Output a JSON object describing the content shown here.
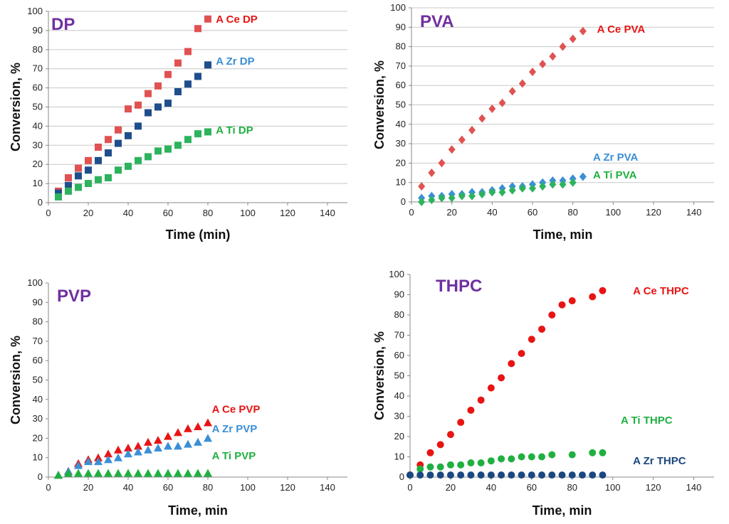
{
  "colors": {
    "ce_light": "#e05252",
    "zr_dark": "#1f4e8c",
    "ti_light": "#2db35d",
    "zr_light": "#3b8fd6",
    "ti_bright": "#20b040",
    "ce_bright": "#e81414",
    "zr_navy": "#1a4780",
    "title_purple": "#7030a0",
    "grid": "#c8c8c8"
  },
  "chart_data": [
    {
      "id": "dp",
      "type": "scatter",
      "title": "DP",
      "xlabel": "Time (min)",
      "ylabel": "Conversion,  %",
      "xlim": [
        0,
        150
      ],
      "ylim": [
        0,
        100
      ],
      "xticks": [
        0,
        20,
        40,
        60,
        80,
        100,
        120,
        140
      ],
      "yticks": [
        0,
        10,
        20,
        30,
        40,
        50,
        60,
        70,
        80,
        90,
        100
      ],
      "grid": true,
      "series": [
        {
          "name": "A Ce DP",
          "marker": "square",
          "color_key": "ce_light",
          "label_color_key": "ce_bright",
          "x": [
            5,
            10,
            15,
            20,
            25,
            30,
            35,
            40,
            45,
            50,
            55,
            60,
            65,
            70,
            75,
            80
          ],
          "y": [
            6,
            13,
            18,
            22,
            29,
            33,
            38,
            49,
            51,
            57,
            61,
            67,
            73,
            79,
            91,
            96
          ],
          "label_pos": [
            84,
            96
          ]
        },
        {
          "name": "A Zr DP",
          "marker": "square",
          "color_key": "zr_dark",
          "label_color_key": "zr_light",
          "x": [
            5,
            10,
            15,
            20,
            25,
            30,
            35,
            40,
            45,
            50,
            55,
            60,
            65,
            70,
            75,
            80
          ],
          "y": [
            5,
            9,
            14,
            17,
            22,
            26,
            31,
            35,
            40,
            47,
            50,
            52,
            58,
            62,
            66,
            72
          ],
          "label_pos": [
            84,
            74
          ]
        },
        {
          "name": "A Ti DP",
          "marker": "square",
          "color_key": "ti_light",
          "label_color_key": "ti_bright",
          "x": [
            5,
            10,
            15,
            20,
            25,
            30,
            35,
            40,
            45,
            50,
            55,
            60,
            65,
            70,
            75,
            80
          ],
          "y": [
            3,
            6,
            8,
            10,
            12,
            13,
            17,
            19,
            22,
            24,
            27,
            28,
            30,
            33,
            36,
            37
          ],
          "label_pos": [
            84,
            38
          ]
        }
      ]
    },
    {
      "id": "pva",
      "type": "scatter",
      "title": "PVA",
      "xlabel": "Time, min",
      "ylabel": "Conversion,  %",
      "xlim": [
        0,
        150
      ],
      "ylim": [
        0,
        100
      ],
      "xticks": [
        0,
        20,
        40,
        60,
        80,
        100,
        120,
        140
      ],
      "yticks": [
        0,
        10,
        20,
        30,
        40,
        50,
        60,
        70,
        80,
        90,
        100
      ],
      "grid": true,
      "series": [
        {
          "name": "A Ce PVA",
          "marker": "diamond",
          "color_key": "ce_light",
          "label_color_key": "ce_bright",
          "x": [
            5,
            10,
            15,
            20,
            25,
            30,
            35,
            40,
            45,
            50,
            55,
            60,
            65,
            70,
            75,
            80,
            85
          ],
          "y": [
            8,
            15,
            20,
            27,
            32,
            37,
            43,
            48,
            51,
            57,
            61,
            67,
            71,
            75,
            80,
            84,
            88
          ],
          "label_pos": [
            92,
            89
          ]
        },
        {
          "name": "A Zr PVA",
          "marker": "diamond",
          "color_key": "zr_light",
          "label_color_key": "zr_light",
          "x": [
            5,
            10,
            15,
            20,
            25,
            30,
            35,
            40,
            45,
            50,
            55,
            60,
            65,
            70,
            75,
            80,
            85
          ],
          "y": [
            2,
            3,
            3,
            4,
            4,
            5,
            5,
            6,
            7,
            8,
            8,
            9,
            10,
            11,
            11,
            12,
            13
          ],
          "label_pos": [
            90,
            23
          ]
        },
        {
          "name": "A Ti PVA",
          "marker": "diamond",
          "color_key": "ti_light",
          "label_color_key": "ti_bright",
          "x": [
            5,
            10,
            15,
            20,
            25,
            30,
            35,
            40,
            45,
            50,
            55,
            60,
            65,
            70,
            75,
            80
          ],
          "y": [
            0,
            1,
            2,
            2,
            3,
            3,
            4,
            5,
            5,
            6,
            7,
            7,
            8,
            9,
            9,
            10
          ],
          "label_pos": [
            90,
            14
          ]
        }
      ]
    },
    {
      "id": "pvp",
      "type": "scatter",
      "title": "PVP",
      "xlabel": "Time, min",
      "ylabel": "Conversion, %",
      "xlim": [
        0,
        150
      ],
      "ylim": [
        0,
        100
      ],
      "xticks": [
        0,
        20,
        40,
        60,
        80,
        100,
        120,
        140
      ],
      "yticks": [
        0,
        10,
        20,
        30,
        40,
        50,
        60,
        70,
        80,
        90,
        100
      ],
      "grid": false,
      "series": [
        {
          "name": "A Ce PVP",
          "marker": "triangle",
          "color_key": "ce_bright",
          "label_color_key": "ce_bright",
          "x": [
            5,
            10,
            15,
            20,
            25,
            30,
            35,
            40,
            45,
            50,
            55,
            60,
            65,
            70,
            75,
            80
          ],
          "y": [
            1,
            3,
            7,
            9,
            10,
            12,
            14,
            15,
            16,
            18,
            19,
            21,
            23,
            25,
            26,
            28
          ],
          "label_pos": [
            82,
            35
          ]
        },
        {
          "name": "A Zr PVP",
          "marker": "triangle",
          "color_key": "zr_light",
          "label_color_key": "zr_light",
          "x": [
            5,
            10,
            15,
            20,
            25,
            30,
            35,
            40,
            45,
            50,
            55,
            60,
            65,
            70,
            75,
            80
          ],
          "y": [
            1,
            3,
            6,
            8,
            8,
            9,
            10,
            12,
            13,
            14,
            15,
            16,
            16,
            17,
            18,
            20
          ],
          "label_pos": [
            82,
            25
          ]
        },
        {
          "name": "A Ti PVP",
          "marker": "triangle",
          "color_key": "ti_bright",
          "label_color_key": "ti_bright",
          "x": [
            5,
            10,
            15,
            20,
            25,
            30,
            35,
            40,
            45,
            50,
            55,
            60,
            65,
            70,
            75,
            80
          ],
          "y": [
            1,
            2,
            2,
            2,
            2,
            2,
            2,
            2,
            2,
            2,
            2,
            2,
            2,
            2,
            2,
            2
          ],
          "label_pos": [
            82,
            11
          ]
        }
      ]
    },
    {
      "id": "thpc",
      "type": "scatter",
      "title": "THPC",
      "xlabel": "Time, min",
      "ylabel": "Conversion,  %",
      "xlim": [
        0,
        150
      ],
      "ylim": [
        0,
        100
      ],
      "xticks": [
        0,
        20,
        40,
        60,
        80,
        100,
        120,
        140
      ],
      "yticks": [
        0,
        10,
        20,
        30,
        40,
        50,
        60,
        70,
        80,
        90,
        100
      ],
      "grid": false,
      "series": [
        {
          "name": "A Ce THPC",
          "marker": "circle",
          "color_key": "ce_bright",
          "label_color_key": "ce_bright",
          "x": [
            0,
            5,
            10,
            15,
            20,
            25,
            30,
            35,
            40,
            45,
            50,
            55,
            60,
            65,
            70,
            75,
            80,
            90,
            95
          ],
          "y": [
            1,
            6,
            12,
            16,
            21,
            27,
            33,
            38,
            44,
            49,
            56,
            61,
            68,
            73,
            80,
            85,
            87,
            89,
            92
          ],
          "label_pos": [
            110,
            92
          ]
        },
        {
          "name": "A Ti THPC",
          "marker": "circle",
          "color_key": "ti_bright",
          "label_color_key": "ti_bright",
          "x": [
            0,
            5,
            10,
            15,
            20,
            25,
            30,
            35,
            40,
            45,
            50,
            55,
            60,
            65,
            70,
            80,
            90,
            95
          ],
          "y": [
            1,
            4,
            5,
            5,
            6,
            6,
            7,
            7,
            8,
            9,
            9,
            10,
            10,
            10,
            11,
            11,
            12,
            12
          ],
          "label_pos": [
            104,
            28
          ]
        },
        {
          "name": "A Zr THPC",
          "marker": "circle",
          "color_key": "zr_navy",
          "label_color_key": "zr_navy",
          "x": [
            0,
            5,
            10,
            15,
            20,
            25,
            30,
            35,
            40,
            45,
            50,
            55,
            60,
            65,
            70,
            75,
            80,
            85,
            90,
            95
          ],
          "y": [
            1,
            1,
            1,
            1,
            1,
            1,
            1,
            1,
            1,
            1,
            1,
            1,
            1,
            1,
            1,
            1,
            1,
            1,
            1,
            1
          ],
          "label_pos": [
            110,
            8
          ]
        }
      ]
    }
  ]
}
